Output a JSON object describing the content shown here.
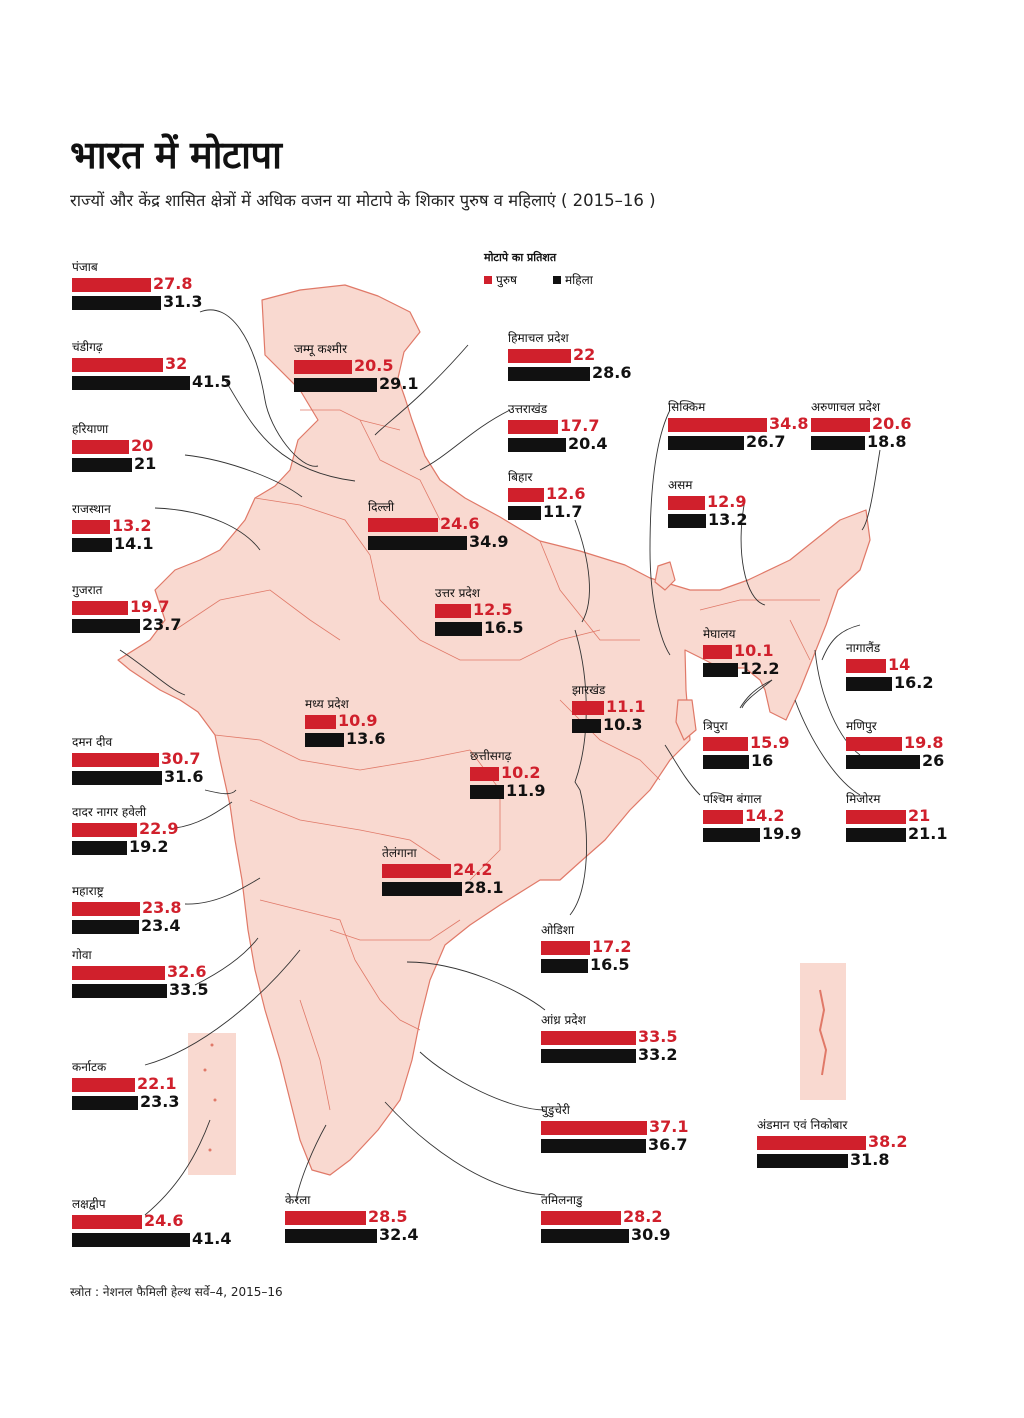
{
  "title": "भारत में मोटापा",
  "subtitle": "राज्यों और केंद्र शासित क्षेत्रों में अधिक वजन या मोटापे के शिकार पुरुष व महिलाएं ( 2015–16 )",
  "legend": {
    "title": "मोटापे का प्रतिशत",
    "men": "पुरुष",
    "women": "महिला",
    "men_color": "#d0202c",
    "women_color": "#111111"
  },
  "source": "स्त्रोत : नेशनल फैमिली हेल्थ सर्वे–4, 2015–16",
  "states": [
    {
      "name": "पंजाब",
      "men": "27.8",
      "women": "31.3"
    },
    {
      "name": "चंडीगढ़",
      "men": "32",
      "women": "41.5"
    },
    {
      "name": "हरियाणा",
      "men": "20",
      "women": "21"
    },
    {
      "name": "राजस्थान",
      "men": "13.2",
      "women": "14.1"
    },
    {
      "name": "गुजरात",
      "men": "19.7",
      "women": "23.7"
    },
    {
      "name": "दमन दीव",
      "men": "30.7",
      "women": "31.6"
    },
    {
      "name": "दादर नागर हवेली",
      "men": "22.9",
      "women": "19.2"
    },
    {
      "name": "महाराष्ट्र",
      "men": "23.8",
      "women": "23.4"
    },
    {
      "name": "गोवा",
      "men": "32.6",
      "women": "33.5"
    },
    {
      "name": "कर्नाटक",
      "men": "22.1",
      "women": "23.3"
    },
    {
      "name": "लक्षद्वीप",
      "men": "24.6",
      "women": "41.4"
    },
    {
      "name": "केरला",
      "men": "28.5",
      "women": "32.4"
    },
    {
      "name": "जम्मू कश्मीर",
      "men": "20.5",
      "women": "29.1"
    },
    {
      "name": "दिल्ली",
      "men": "24.6",
      "women": "34.9"
    },
    {
      "name": "उत्तर प्रदेश",
      "men": "12.5",
      "women": "16.5"
    },
    {
      "name": "मध्य प्रदेश",
      "men": "10.9",
      "women": "13.6"
    },
    {
      "name": "छत्तीसगढ़",
      "men": "10.2",
      "women": "11.9"
    },
    {
      "name": "तेलंगाना",
      "men": "24.2",
      "women": "28.1"
    },
    {
      "name": "झारखंड",
      "men": "11.1",
      "women": "10.3"
    },
    {
      "name": "हिमाचल प्रदेश",
      "men": "22",
      "women": "28.6"
    },
    {
      "name": "उत्तराखंड",
      "men": "17.7",
      "women": "20.4"
    },
    {
      "name": "बिहार",
      "men": "12.6",
      "women": "11.7"
    },
    {
      "name": "ओडिशा",
      "men": "17.2",
      "women": "16.5"
    },
    {
      "name": "आंध्र प्रदेश",
      "men": "33.5",
      "women": "33.2"
    },
    {
      "name": "पुडुचेरी",
      "men": "37.1",
      "women": "36.7"
    },
    {
      "name": "तमिलनाडु",
      "men": "28.2",
      "women": "30.9"
    },
    {
      "name": "सिक्किम",
      "men": "34.8",
      "women": "26.7"
    },
    {
      "name": "अरुणाचल प्रदेश",
      "men": "20.6",
      "women": "18.8"
    },
    {
      "name": "असम",
      "men": "12.9",
      "women": "13.2"
    },
    {
      "name": "मेघालय",
      "men": "10.1",
      "women": "12.2"
    },
    {
      "name": "नागालैंड",
      "men": "14",
      "women": "16.2"
    },
    {
      "name": "त्रिपुरा",
      "men": "15.9",
      "women": "16"
    },
    {
      "name": "मणिपुर",
      "men": "19.8",
      "women": "26"
    },
    {
      "name": "पश्चिम बंगाल",
      "men": "14.2",
      "women": "19.9"
    },
    {
      "name": "मिजोरम",
      "men": "21",
      "women": "21.1"
    },
    {
      "name": "अंडमान एवं निकोबार",
      "men": "38.2",
      "women": "31.8"
    }
  ]
}
